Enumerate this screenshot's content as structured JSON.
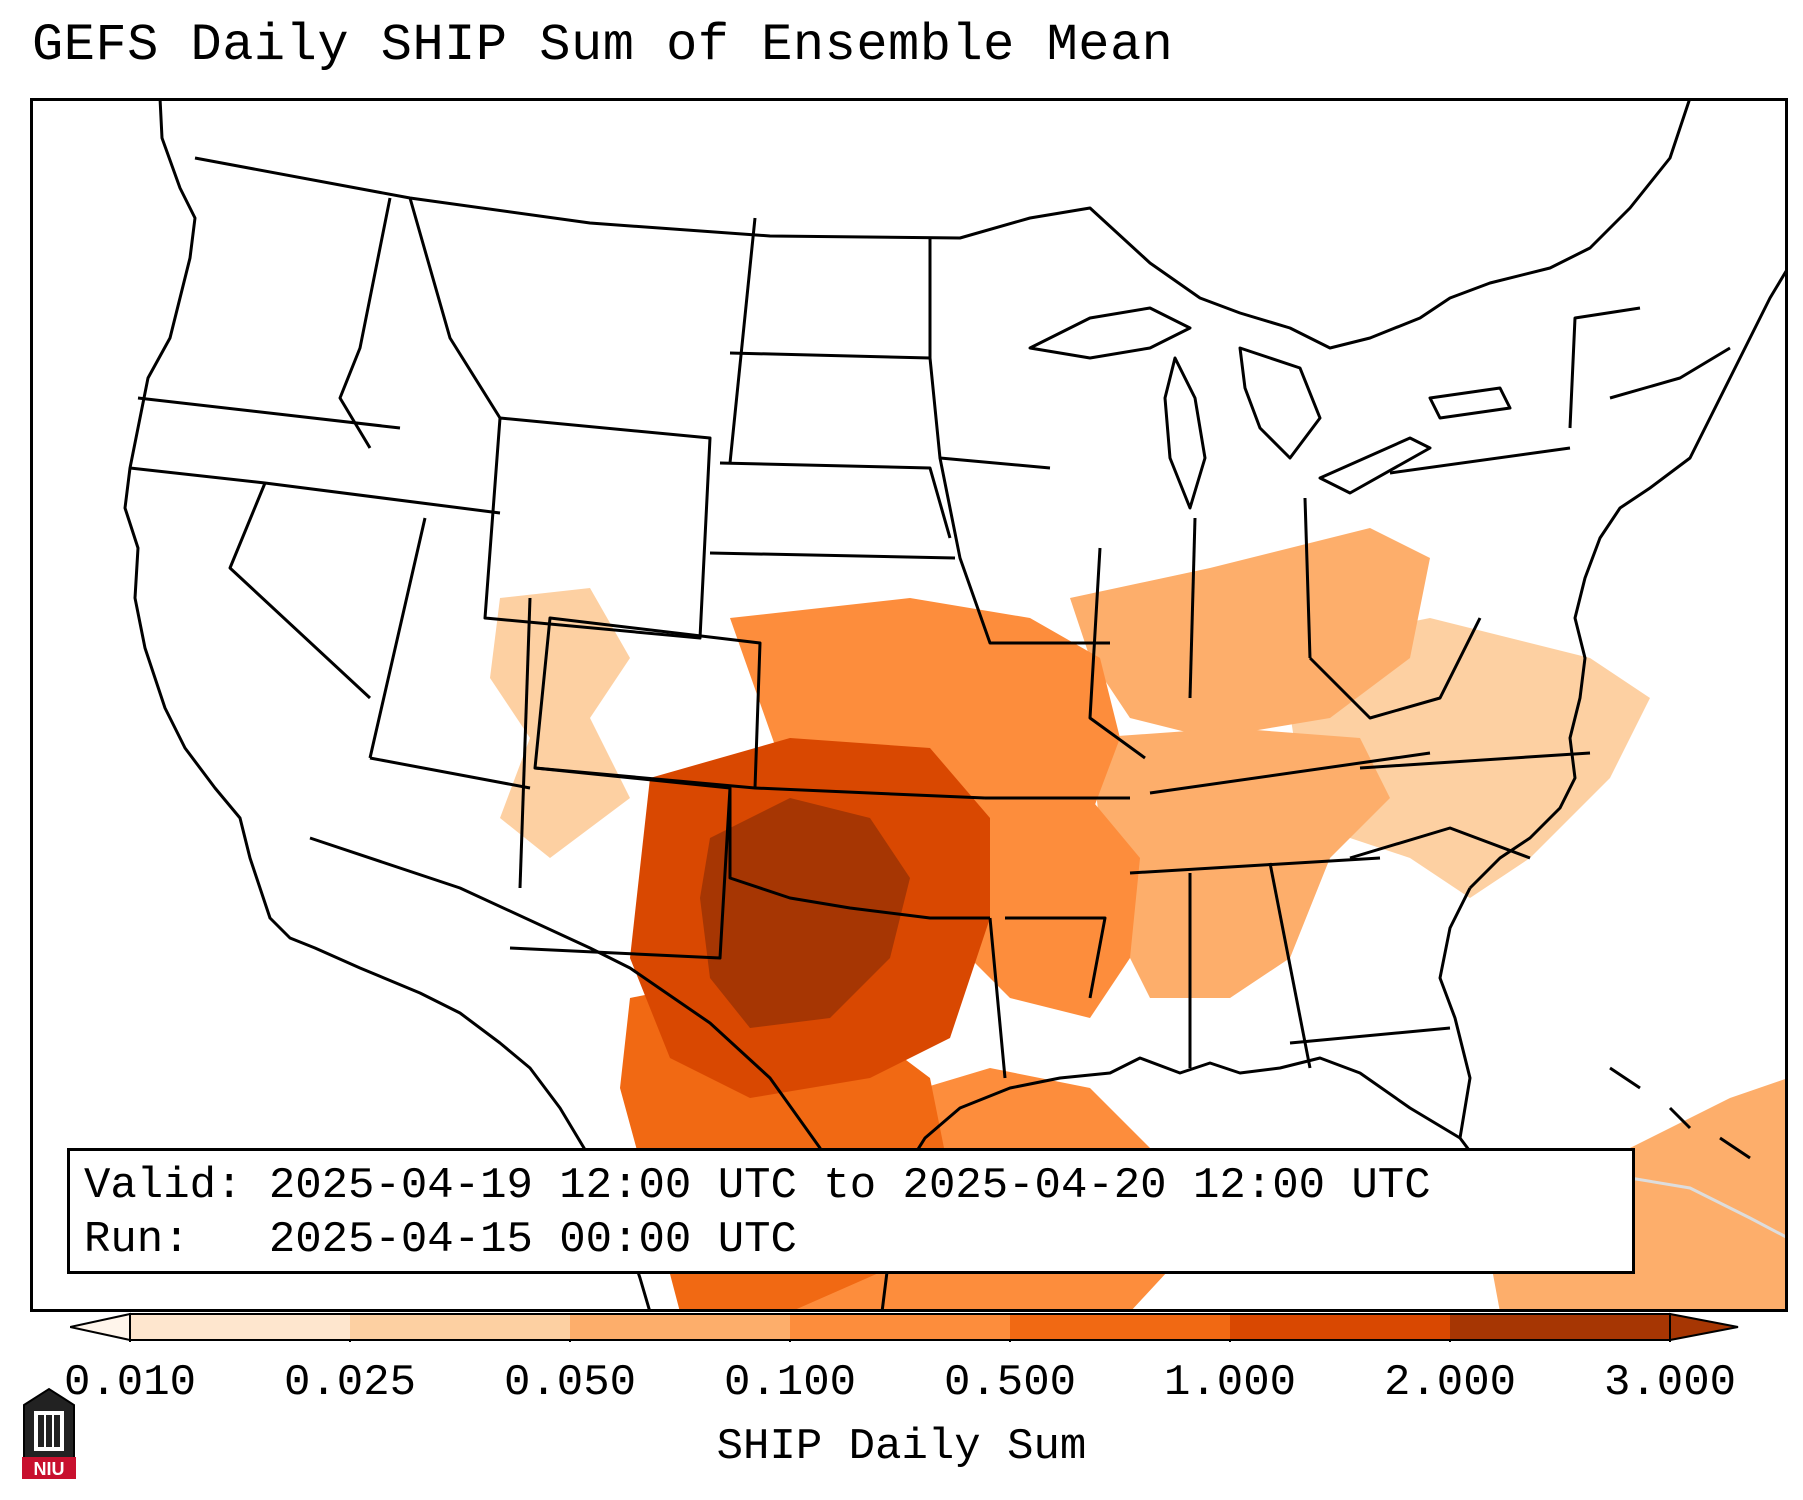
{
  "title": "GEFS Daily SHIP Sum of Ensemble Mean",
  "info_box": {
    "valid_line": "Valid: 2025-04-19 12:00 UTC to 2025-04-20 12:00 UTC",
    "run_line": "Run:   2025-04-15 00:00 UTC"
  },
  "colorbar": {
    "label": "SHIP Daily Sum",
    "ticks": [
      "0.010",
      "0.025",
      "0.050",
      "0.100",
      "0.500",
      "1.000",
      "2.000",
      "3.000"
    ],
    "colors": [
      "#fff5eb",
      "#fee6ce",
      "#fdd0a2",
      "#fdae6b",
      "#fd8d3c",
      "#f16913",
      "#d94801",
      "#a63603"
    ]
  },
  "logo": {
    "text": "NIU",
    "color": "#c8102e"
  },
  "map": {
    "region": "contiguous-united-states",
    "shading": [
      {
        "area": "texas-central",
        "level": 7
      },
      {
        "area": "oklahoma-south",
        "level": 6
      },
      {
        "area": "texas-coast",
        "level": 5
      },
      {
        "area": "arkansas-louisiana",
        "level": 4
      },
      {
        "area": "kansas-missouri",
        "level": 4
      },
      {
        "area": "ohio-valley",
        "level": 3
      },
      {
        "area": "tennessee-alabama",
        "level": 3
      },
      {
        "area": "virginia-carolinas",
        "level": 2
      },
      {
        "area": "new-mexico-colorado",
        "level": 2
      },
      {
        "area": "gulf-of-mexico",
        "level": 4
      },
      {
        "area": "caribbean",
        "level": 3
      }
    ]
  }
}
